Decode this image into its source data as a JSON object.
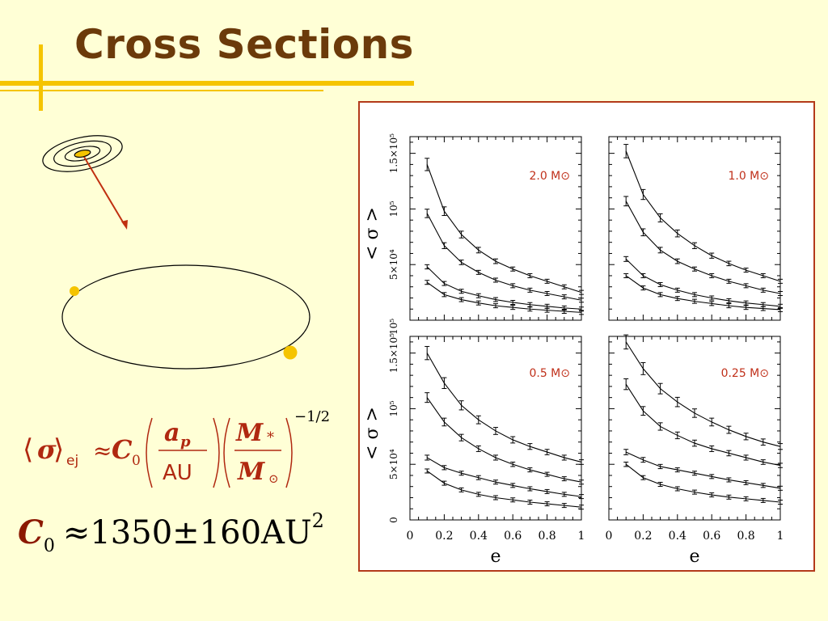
{
  "slide": {
    "title": "Cross Sections"
  },
  "formula": {
    "sigma": "σ",
    "sigma_sub": "ej",
    "approx": "≈",
    "C": "C",
    "C_sub": "0",
    "frac1_num": "a",
    "frac1_num_sub": "p",
    "frac1_den": "AU",
    "frac2_num": "M",
    "frac2_num_sub": "*",
    "frac2_den": "M",
    "frac2_den_sub": "⊙",
    "exponent": "−1/2"
  },
  "c0_result": {
    "symbol": "C",
    "sub": "0",
    "approx": "≈",
    "value": "1350",
    "pm": "±",
    "error": "160",
    "unit": "AU",
    "unit_power": "2"
  },
  "chart_data": {
    "type": "line",
    "xlabel": "e",
    "ylabel": "< σ >",
    "x_ticks": [
      "0",
      "0.2",
      "0.4",
      "0.6",
      "0.8",
      "1"
    ],
    "y_ticks_top": [
      "1.5×10⁵",
      "10⁵",
      "5×10⁴"
    ],
    "y_ticks_bottom": [
      "1.5×10⁵",
      "10⁵",
      "5×10⁴",
      "0"
    ],
    "y_ticks_overlap_label": "10⁵",
    "xlim": [
      0,
      1
    ],
    "ylim": [
      0,
      165000
    ],
    "grid": false,
    "colors": {
      "label": "#c0301a",
      "curve": "#000000",
      "frame": "#b33a1a"
    },
    "x": [
      0.1,
      0.2,
      0.3,
      0.4,
      0.5,
      0.6,
      0.7,
      0.8,
      0.9,
      1.0
    ],
    "panels": [
      {
        "label": "2.0 M⊙",
        "series": [
          {
            "values": [
              140000,
              98000,
              77000,
              63000,
              53000,
              46000,
              40000,
              35000,
              30000,
              25000
            ]
          },
          {
            "values": [
              96000,
              67000,
              52000,
              43000,
              36000,
              31000,
              27000,
              24000,
              21000,
              18000
            ]
          },
          {
            "values": [
              48000,
              33000,
              26000,
              22000,
              18500,
              16000,
              14000,
              12500,
              11000,
              10000
            ]
          },
          {
            "values": [
              34000,
              23000,
              18500,
              15500,
              13000,
              11500,
              10000,
              9000,
              8000,
              7000
            ]
          }
        ]
      },
      {
        "label": "1.0 M⊙",
        "series": [
          {
            "values": [
              152000,
              113000,
              92000,
              78000,
              67000,
              58000,
              51000,
              45000,
              40000,
              35000
            ]
          },
          {
            "values": [
              107000,
              79000,
              63000,
              53000,
              46000,
              40000,
              35000,
              31000,
              27000,
              24000
            ]
          },
          {
            "values": [
              55000,
              40000,
              32000,
              27000,
              23000,
              20000,
              17500,
              15500,
              14000,
              12500
            ]
          },
          {
            "values": [
              40000,
              29000,
              23000,
              19500,
              17000,
              15000,
              13000,
              11500,
              10500,
              9500
            ]
          }
        ]
      },
      {
        "label": "0.5 M⊙",
        "series": [
          {
            "values": [
              150000,
              123000,
              103000,
              90000,
              80000,
              72000,
              66000,
              61000,
              56000,
              52000
            ]
          },
          {
            "values": [
              110000,
              88000,
              74000,
              64000,
              56000,
              50000,
              45000,
              41000,
              37000,
              34000
            ]
          },
          {
            "values": [
              56000,
              47000,
              42000,
              38000,
              34000,
              31000,
              28000,
              25500,
              23000,
              21000
            ]
          },
          {
            "values": [
              44000,
              33000,
              27000,
              23000,
              20000,
              18000,
              16000,
              14500,
              13000,
              11500
            ]
          }
        ]
      },
      {
        "label": "0.25 M⊙",
        "series": [
          {
            "values": [
              160000,
              136000,
              118000,
              106000,
              96000,
              88000,
              81000,
              75000,
              70000,
              66000
            ]
          },
          {
            "values": [
              122000,
              98000,
              84000,
              76000,
              69000,
              64000,
              60000,
              56000,
              52000,
              49000
            ]
          },
          {
            "values": [
              61000,
              54000,
              48000,
              45000,
              42000,
              39000,
              36000,
              33500,
              31000,
              28500
            ]
          },
          {
            "values": [
              50000,
              38000,
              32000,
              28000,
              25000,
              22500,
              20500,
              19000,
              17500,
              16000
            ]
          }
        ]
      }
    ]
  }
}
